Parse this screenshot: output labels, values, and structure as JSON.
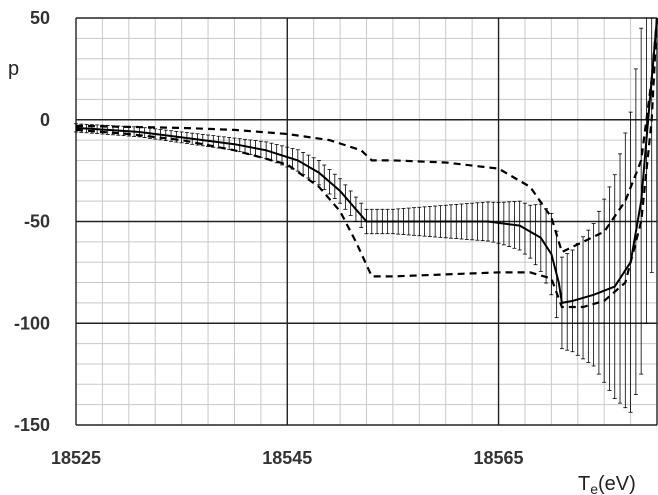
{
  "chart_data": {
    "type": "line",
    "ylabel": "p",
    "xlabel_main": "T",
    "xlabel_sub": "e",
    "xlabel_unit": "(eV)",
    "xlim": [
      18525,
      18580
    ],
    "ylim": [
      -150,
      50
    ],
    "x_ticks": [
      18525,
      18545,
      18565
    ],
    "y_ticks": [
      50,
      0,
      -50,
      -100,
      -150
    ],
    "grid": true,
    "series": [
      {
        "style": "solid",
        "points": [
          [
            18525,
            -4
          ],
          [
            18528,
            -5
          ],
          [
            18531,
            -6
          ],
          [
            18534,
            -8
          ],
          [
            18537,
            -10
          ],
          [
            18540,
            -12
          ],
          [
            18543,
            -15
          ],
          [
            18546,
            -20
          ],
          [
            18548,
            -26
          ],
          [
            18550,
            -35
          ],
          [
            18551.5,
            -44
          ],
          [
            18552.5,
            -50
          ],
          [
            18555,
            -50
          ],
          [
            18560,
            -50
          ],
          [
            18564,
            -50
          ],
          [
            18567,
            -52
          ],
          [
            18569,
            -58
          ],
          [
            18570,
            -66
          ],
          [
            18570.7,
            -80
          ],
          [
            18571,
            -90
          ],
          [
            18572,
            -89
          ],
          [
            18574,
            -86
          ],
          [
            18576,
            -82
          ],
          [
            18577.5,
            -70
          ],
          [
            18578.5,
            -40
          ],
          [
            18579,
            -10
          ],
          [
            18579.5,
            20
          ],
          [
            18580,
            50
          ]
        ]
      },
      {
        "style": "dashed",
        "points": [
          [
            18525,
            -3
          ],
          [
            18530,
            -3.5
          ],
          [
            18535,
            -4
          ],
          [
            18540,
            -5
          ],
          [
            18545,
            -7
          ],
          [
            18549,
            -10
          ],
          [
            18552,
            -15
          ],
          [
            18553,
            -20
          ],
          [
            18555,
            -20
          ],
          [
            18560,
            -21
          ],
          [
            18565,
            -24
          ],
          [
            18568,
            -33
          ],
          [
            18570,
            -48
          ],
          [
            18571,
            -65
          ],
          [
            18573,
            -60
          ],
          [
            18575,
            -55
          ],
          [
            18577,
            -40
          ],
          [
            18578.5,
            -20
          ],
          [
            18579.5,
            20
          ],
          [
            18580,
            50
          ]
        ]
      },
      {
        "style": "dashed",
        "points": [
          [
            18525,
            -5
          ],
          [
            18530,
            -7
          ],
          [
            18535,
            -10
          ],
          [
            18540,
            -15
          ],
          [
            18545,
            -22
          ],
          [
            18548,
            -33
          ],
          [
            18550,
            -45
          ],
          [
            18551.5,
            -60
          ],
          [
            18553,
            -77
          ],
          [
            18555,
            -77
          ],
          [
            18560,
            -76
          ],
          [
            18565,
            -75
          ],
          [
            18568,
            -75
          ],
          [
            18570,
            -78
          ],
          [
            18571,
            -92
          ],
          [
            18573,
            -92
          ],
          [
            18575,
            -89
          ],
          [
            18577,
            -80
          ],
          [
            18578.5,
            -50
          ],
          [
            18579.5,
            0
          ],
          [
            18580,
            50
          ]
        ]
      }
    ],
    "error_bars": {
      "x_start": 18525,
      "x_end": 18579.5,
      "step": 0.5,
      "half_width_pattern": [
        [
          18525,
          2
        ],
        [
          18540,
          3
        ],
        [
          18548,
          6
        ],
        [
          18552,
          6
        ],
        [
          18555,
          6
        ],
        [
          18560,
          8
        ],
        [
          18565,
          10
        ],
        [
          18568,
          13
        ],
        [
          18570,
          20
        ],
        [
          18572,
          25
        ],
        [
          18574,
          35
        ],
        [
          18576,
          55
        ],
        [
          18578,
          80
        ],
        [
          18579.5,
          95
        ]
      ]
    }
  }
}
